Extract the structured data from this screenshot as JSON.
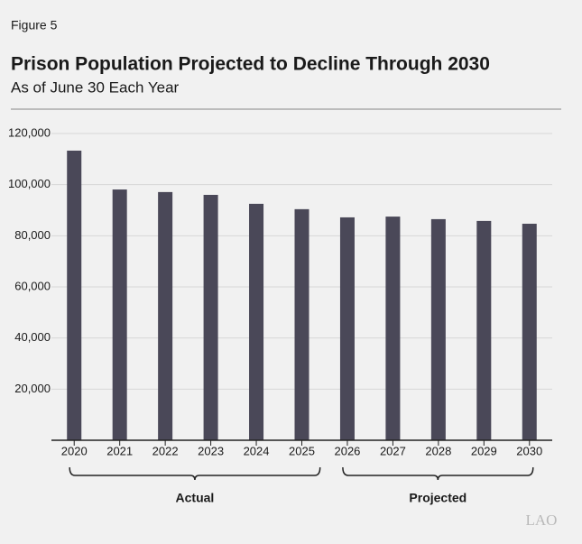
{
  "chart_data": {
    "type": "bar",
    "figure_label": "Figure 5",
    "title": "Prison Population Projected to Decline Through 2030",
    "subtitle": "As of June 30 Each Year",
    "categories": [
      "2020",
      "2021",
      "2022",
      "2023",
      "2024",
      "2025",
      "2026",
      "2027",
      "2028",
      "2029",
      "2030"
    ],
    "values": [
      113300,
      98100,
      97100,
      96000,
      92500,
      90400,
      87200,
      87500,
      86500,
      85800,
      84700
    ],
    "color": "#4a4858",
    "ylim": [
      0,
      120000
    ],
    "yticks": [
      {
        "value": 20000,
        "label": "20,000"
      },
      {
        "value": 40000,
        "label": "40,000"
      },
      {
        "value": 60000,
        "label": "60,000"
      },
      {
        "value": 80000,
        "label": "80,000"
      },
      {
        "value": 100000,
        "label": "100,000"
      },
      {
        "value": 120000,
        "label": "120,000"
      }
    ],
    "grid": true,
    "groups": [
      {
        "label": "Actual",
        "first": 0,
        "last": 5
      },
      {
        "label": "Projected",
        "first": 6,
        "last": 10
      }
    ],
    "logo": "LAO"
  }
}
